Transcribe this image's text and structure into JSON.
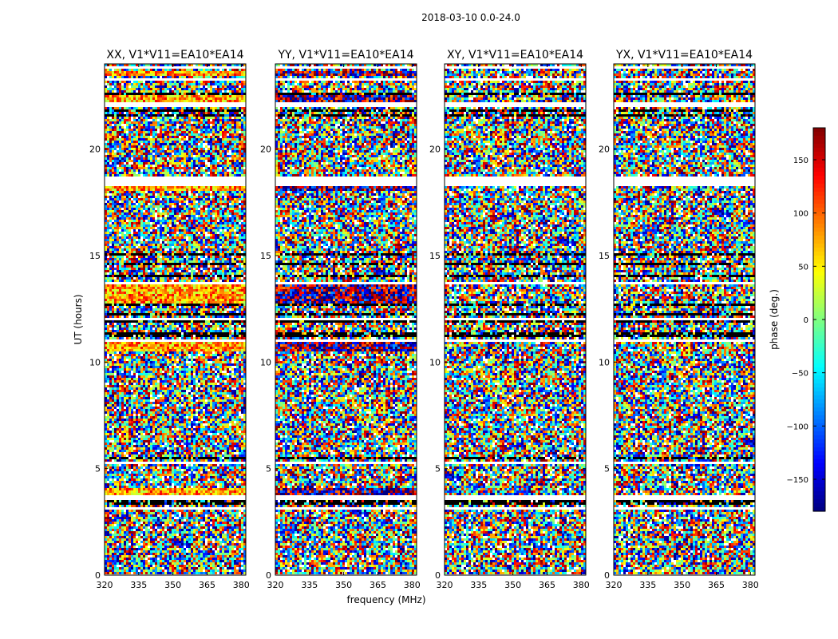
{
  "figure": {
    "suptitle": "2018-03-10 0.0-24.0"
  },
  "chart_data": [
    {
      "type": "heatmap",
      "title": "XX, V1*V11=EA10*EA14",
      "xlabel": "frequency (MHz)",
      "ylabel": "UT (hours)",
      "xlim": [
        320,
        382
      ],
      "ylim": [
        0,
        24
      ],
      "xticks": [
        320,
        335,
        350,
        365,
        380
      ],
      "yticks": [
        0,
        5,
        10,
        15,
        20
      ],
      "value_label": "phase (deg.)",
      "value_range": [
        -180,
        180
      ]
    },
    {
      "type": "heatmap",
      "title": "YY, V1*V11=EA10*EA14",
      "xlabel": "frequency (MHz)",
      "ylabel": "UT (hours)",
      "xlim": [
        320,
        382
      ],
      "ylim": [
        0,
        24
      ],
      "xticks": [
        320,
        335,
        350,
        365,
        380
      ],
      "yticks": [
        0,
        5,
        10,
        15,
        20
      ],
      "value_label": "phase (deg.)",
      "value_range": [
        -180,
        180
      ]
    },
    {
      "type": "heatmap",
      "title": "XY, V1*V11=EA10*EA14",
      "xlabel": "frequency (MHz)",
      "ylabel": "UT (hours)",
      "xlim": [
        320,
        382
      ],
      "ylim": [
        0,
        24
      ],
      "xticks": [
        320,
        335,
        350,
        365,
        380
      ],
      "yticks": [
        0,
        5,
        10,
        15,
        20
      ],
      "value_label": "phase (deg.)",
      "value_range": [
        -180,
        180
      ]
    },
    {
      "type": "heatmap",
      "title": "YX, V1*V11=EA10*EA14",
      "xlabel": "frequency (MHz)",
      "ylabel": "UT (hours)",
      "xlim": [
        320,
        382
      ],
      "ylim": [
        0,
        24
      ],
      "xticks": [
        320,
        335,
        350,
        365,
        380
      ],
      "yticks": [
        0,
        5,
        10,
        15,
        20
      ],
      "value_label": "phase (deg.)",
      "value_range": [
        -180,
        180
      ]
    }
  ],
  "colorbar": {
    "label": "phase (deg.)",
    "range": [
      -180,
      180
    ],
    "ticks": [
      150,
      100,
      50,
      0,
      -50,
      -100,
      -150
    ],
    "colormap": "jet",
    "frame_color": "#000000"
  }
}
